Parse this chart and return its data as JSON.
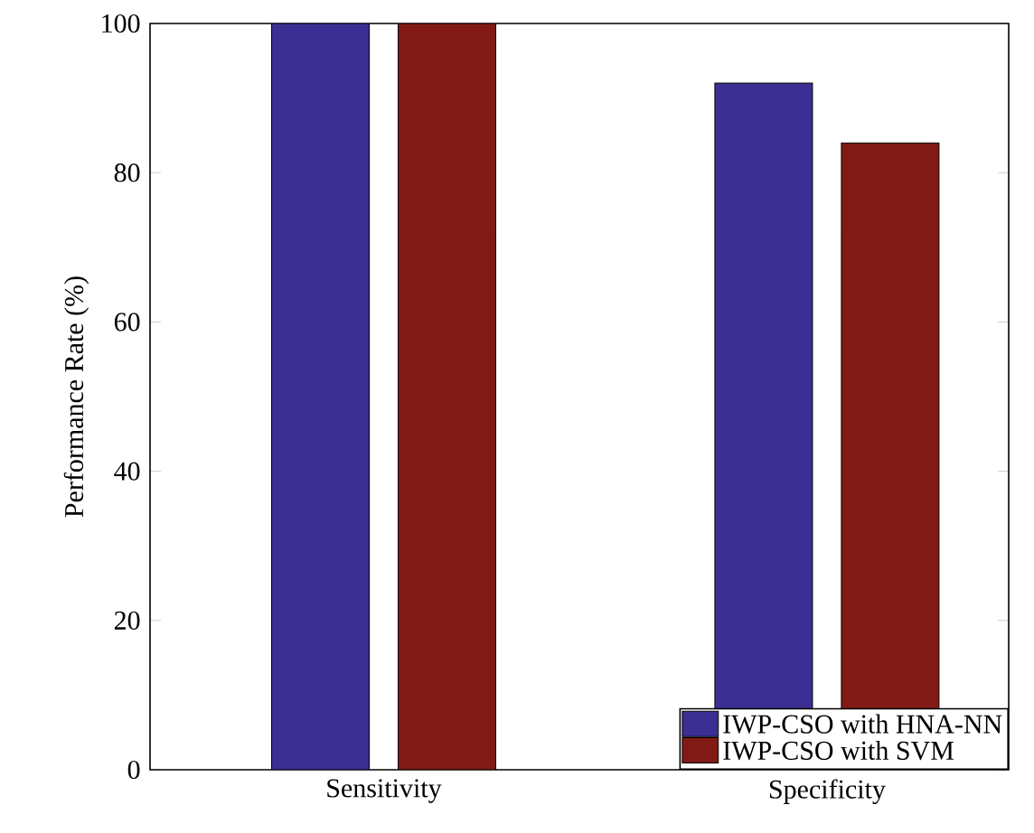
{
  "chart_data": {
    "type": "bar",
    "ylabel": "Performance Rate (%)",
    "categories": [
      "Sensitivity",
      "Specificity"
    ],
    "series": [
      {
        "name": "IWP-CSO with HNA-NN",
        "color": "#3b2f93",
        "values": [
          100,
          92
        ]
      },
      {
        "name": "IWP-CSO with SVM",
        "color": "#811a15",
        "values": [
          100,
          84
        ]
      }
    ],
    "ylim": [
      0,
      100
    ],
    "yticks": [
      0,
      20,
      40,
      60,
      80,
      100
    ],
    "grid": false,
    "legend": "bottom right"
  }
}
